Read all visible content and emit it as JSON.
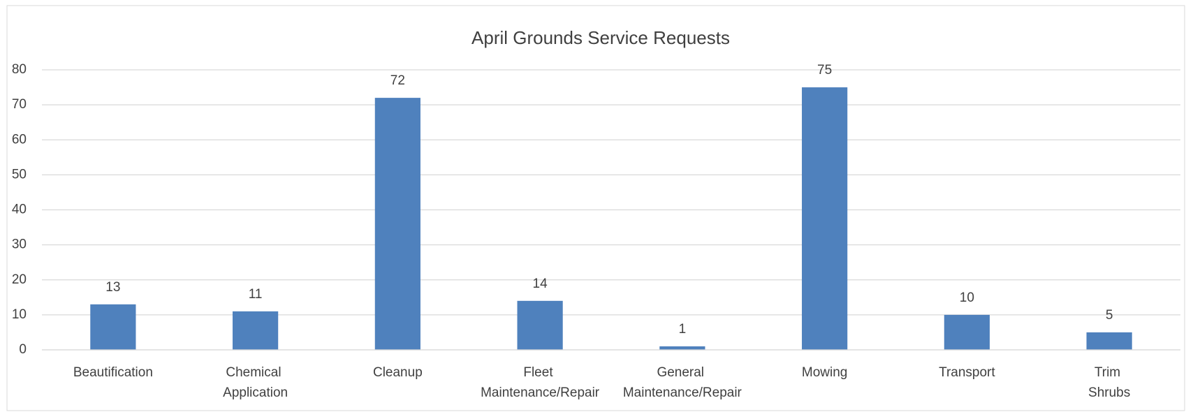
{
  "chart_data": {
    "type": "bar",
    "title": "April Grounds Service Requests",
    "categories": [
      "Beautification",
      "Chemical Application",
      "Cleanup",
      "Fleet Maintenance/Repair",
      "General Maintenance/Repair",
      "Mowing",
      "Transport",
      "Trim Shrubs"
    ],
    "values": [
      13,
      11,
      72,
      14,
      1,
      75,
      10,
      5
    ],
    "color": "#4f81bd",
    "ylim": [
      0,
      80
    ],
    "yticks": [
      0,
      10,
      20,
      30,
      40,
      50,
      60,
      70,
      80
    ],
    "grid": true
  }
}
